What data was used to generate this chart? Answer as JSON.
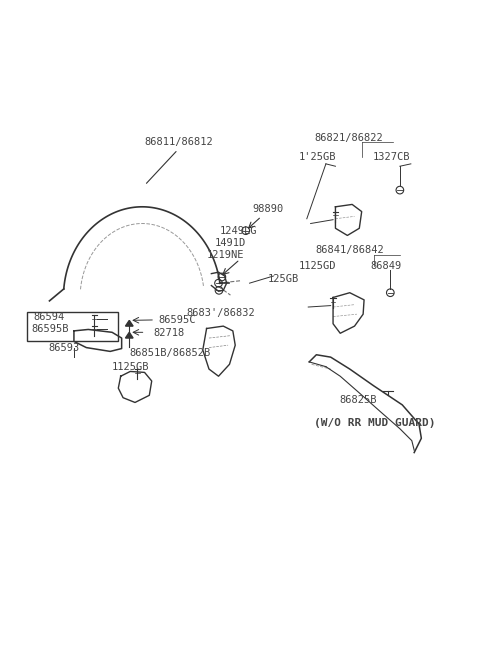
{
  "bg_color": "#ffffff",
  "line_color": "#333333",
  "text_color": "#444444",
  "labels": {
    "86811_86812": {
      "text": "86811/86812"
    },
    "98890": {
      "text": "98890"
    },
    "1249LG": {
      "text": "1249LG"
    },
    "1491D": {
      "text": "1491D"
    },
    "1219NE": {
      "text": "1219NE"
    },
    "125GB_mid": {
      "text": "125GB"
    },
    "86595C": {
      "text": "86595C"
    },
    "82718": {
      "text": "82718"
    },
    "86851B_86852B": {
      "text": "86851B/86852B"
    },
    "1125GB_bot": {
      "text": "1125GB"
    },
    "8683_86832": {
      "text": "8683'/86832"
    },
    "86593": {
      "text": "86593"
    },
    "86594": {
      "text": "86594"
    },
    "86595B": {
      "text": "86595B"
    },
    "86821_86822": {
      "text": "86821/86822"
    },
    "125GB_top": {
      "text": "1'25GB"
    },
    "1327CB": {
      "text": "1327CB"
    },
    "86841_86842": {
      "text": "86841/86842"
    },
    "1125GD": {
      "text": "1125GD"
    },
    "86849": {
      "text": "86849"
    },
    "86825B": {
      "text": "86825B"
    },
    "wo_rr_mud": {
      "text": "(W/O RR MUD GUARD)"
    }
  },
  "fontsize": 7.5
}
